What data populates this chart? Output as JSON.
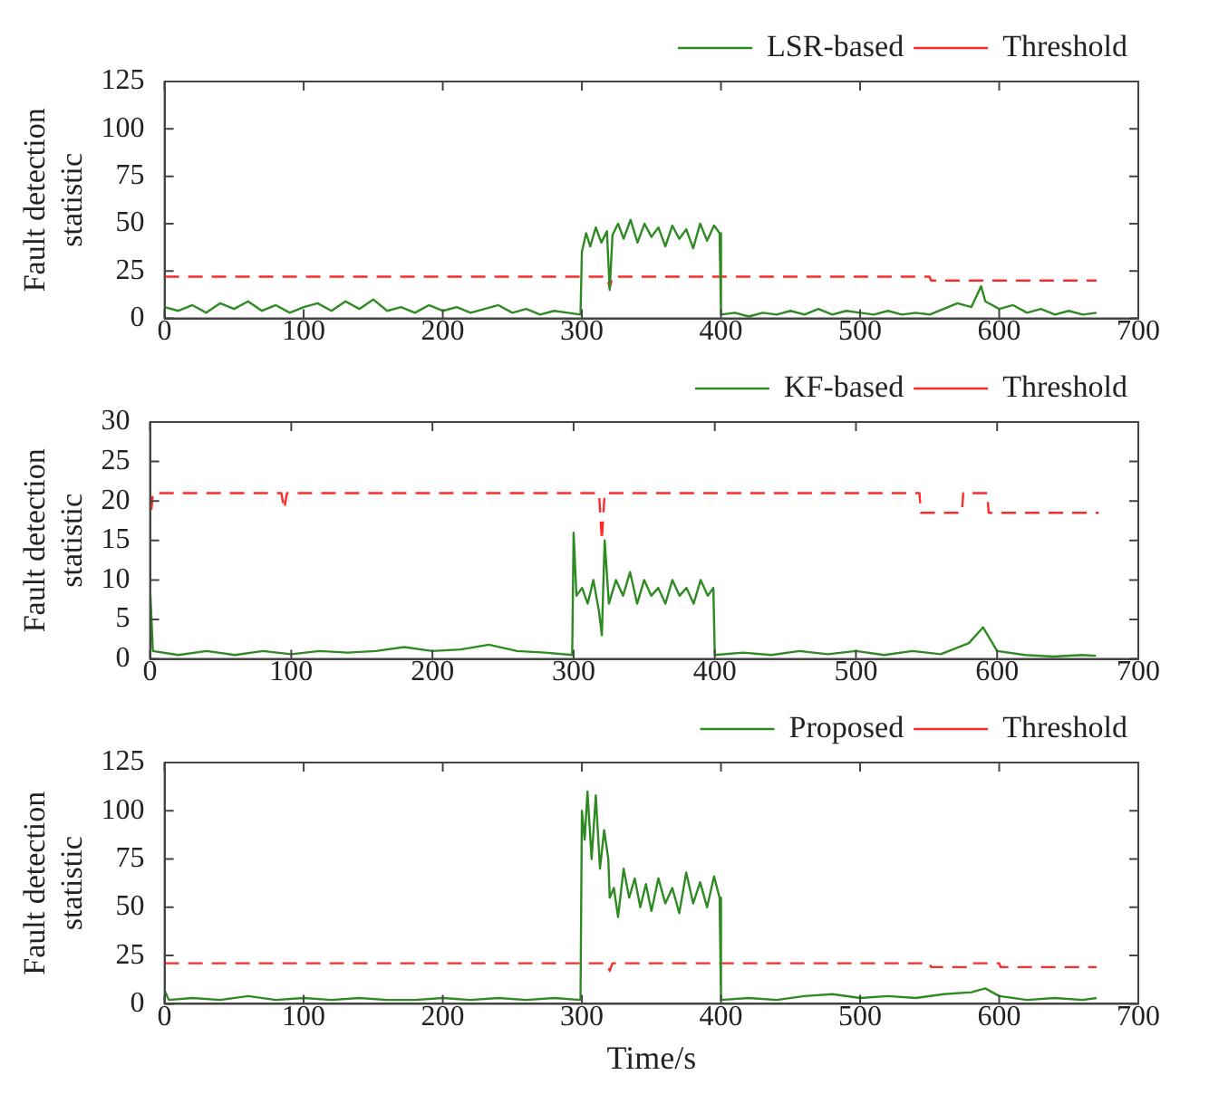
{
  "chart_data": [
    {
      "type": "line",
      "ylabel": "Fault detection statistic",
      "xlim": [
        0,
        700
      ],
      "xticks": [
        0,
        100,
        200,
        300,
        400,
        500,
        600,
        700
      ],
      "ylim": [
        0,
        125
      ],
      "yticks": [
        0,
        25,
        50,
        75,
        100,
        125
      ],
      "legend": "top right",
      "grid": false,
      "series": [
        {
          "name": "LSR-based",
          "color": "#2e8b22",
          "line_style": "solid",
          "x": [
            0,
            10,
            20,
            30,
            40,
            50,
            60,
            70,
            80,
            90,
            100,
            110,
            120,
            130,
            140,
            150,
            160,
            170,
            180,
            190,
            200,
            210,
            220,
            230,
            240,
            250,
            260,
            270,
            280,
            290,
            299,
            300,
            303,
            306,
            310,
            314,
            318,
            320,
            322,
            326,
            330,
            335,
            340,
            345,
            350,
            355,
            360,
            365,
            370,
            375,
            380,
            385,
            390,
            395,
            399,
            400,
            410,
            420,
            430,
            440,
            450,
            460,
            470,
            480,
            490,
            500,
            510,
            520,
            530,
            540,
            550,
            560,
            570,
            580,
            587,
            590,
            600,
            610,
            620,
            630,
            640,
            650,
            660,
            670
          ],
          "values": [
            6,
            4,
            7,
            3,
            8,
            5,
            9,
            4,
            7,
            3,
            6,
            8,
            4,
            9,
            5,
            10,
            4,
            6,
            3,
            7,
            4,
            6,
            3,
            5,
            7,
            3,
            5,
            2,
            4,
            3,
            2,
            35,
            45,
            38,
            48,
            40,
            46,
            15,
            44,
            50,
            42,
            52,
            40,
            50,
            43,
            48,
            38,
            49,
            42,
            47,
            37,
            50,
            41,
            49,
            45,
            2,
            3,
            1,
            3,
            2,
            4,
            2,
            5,
            2,
            4,
            3,
            2,
            4,
            2,
            3,
            2,
            5,
            8,
            6,
            17,
            9,
            5,
            7,
            3,
            5,
            2,
            4,
            2,
            3
          ]
        },
        {
          "name": "Threshold",
          "color": "#ff2a2a",
          "line_style": "dashed",
          "x": [
            0,
            318,
            320,
            322,
            550,
            551,
            670
          ],
          "values": [
            22,
            22,
            16,
            22,
            22,
            20,
            20
          ]
        }
      ]
    },
    {
      "type": "line",
      "ylabel": "Fault detection statistic",
      "xlim": [
        0,
        700
      ],
      "xticks": [
        0,
        100,
        200,
        300,
        400,
        500,
        600,
        700
      ],
      "ylim": [
        0,
        30
      ],
      "yticks": [
        0,
        5,
        10,
        15,
        20,
        25,
        30
      ],
      "legend": "top right",
      "grid": false,
      "series": [
        {
          "name": "KF-based",
          "color": "#2e8b22",
          "line_style": "solid",
          "x": [
            0,
            2,
            20,
            40,
            60,
            80,
            100,
            120,
            140,
            160,
            180,
            200,
            220,
            240,
            260,
            280,
            299,
            300,
            302,
            306,
            310,
            314,
            318,
            320,
            322,
            325,
            330,
            335,
            340,
            345,
            350,
            355,
            360,
            365,
            370,
            375,
            380,
            385,
            390,
            395,
            399,
            400,
            420,
            440,
            460,
            480,
            500,
            520,
            540,
            560,
            580,
            590,
            600,
            620,
            640,
            660,
            670
          ],
          "values": [
            9,
            1,
            0.5,
            1,
            0.5,
            1,
            0.6,
            1,
            0.8,
            1,
            1.5,
            1,
            1.2,
            1.8,
            1,
            0.8,
            0.5,
            16,
            8,
            9,
            7,
            10,
            6,
            3,
            15,
            7,
            10,
            8,
            11,
            7,
            10,
            8,
            9,
            7,
            10,
            8,
            9,
            7,
            10,
            8,
            9,
            0.5,
            0.8,
            0.5,
            1,
            0.6,
            1,
            0.5,
            1,
            0.6,
            2,
            4,
            1,
            0.5,
            0.3,
            0.5,
            0.4
          ]
        },
        {
          "name": "Threshold",
          "color": "#ff2a2a",
          "line_style": "dashed",
          "x": [
            0,
            1,
            2,
            93,
            95,
            97,
            318,
            320,
            322,
            545,
            546,
            575,
            576,
            593,
            594,
            672
          ],
          "values": [
            19,
            19,
            21,
            21,
            19,
            21,
            21,
            15,
            21,
            21,
            18.5,
            18.5,
            21,
            21,
            18.5,
            18.5
          ]
        }
      ]
    },
    {
      "type": "line",
      "ylabel": "Fault detection statistic",
      "xlabel": "Time/s",
      "xlim": [
        0,
        700
      ],
      "xticks": [
        0,
        100,
        200,
        300,
        400,
        500,
        600,
        700
      ],
      "ylim": [
        0,
        125
      ],
      "yticks": [
        0,
        25,
        50,
        75,
        100,
        125
      ],
      "legend": "top right",
      "grid": false,
      "series": [
        {
          "name": "Proposed",
          "color": "#2e8b22",
          "line_style": "solid",
          "x": [
            0,
            3,
            20,
            40,
            60,
            80,
            100,
            120,
            140,
            160,
            180,
            200,
            220,
            240,
            260,
            280,
            299,
            300,
            302,
            304,
            307,
            310,
            313,
            316,
            319,
            320,
            323,
            326,
            330,
            334,
            338,
            342,
            346,
            350,
            355,
            360,
            365,
            370,
            375,
            380,
            385,
            390,
            395,
            399,
            400,
            420,
            440,
            460,
            480,
            500,
            520,
            540,
            560,
            580,
            590,
            600,
            620,
            640,
            660,
            670
          ],
          "values": [
            7,
            2,
            3,
            2,
            4,
            2,
            3,
            2,
            3,
            2,
            2,
            3,
            2,
            3,
            2,
            3,
            2,
            100,
            85,
            110,
            75,
            108,
            70,
            90,
            75,
            55,
            60,
            45,
            70,
            55,
            65,
            50,
            62,
            48,
            65,
            52,
            60,
            47,
            68,
            52,
            63,
            50,
            66,
            55,
            2,
            3,
            2,
            4,
            5,
            3,
            4,
            3,
            5,
            6,
            8,
            4,
            2,
            3,
            2,
            3
          ]
        },
        {
          "name": "Threshold",
          "color": "#ff2a2a",
          "line_style": "dashed",
          "x": [
            0,
            318,
            320,
            322,
            550,
            551,
            580,
            581,
            600,
            601,
            670
          ],
          "values": [
            21,
            21,
            17,
            21,
            21,
            19,
            19,
            21,
            21,
            19,
            19
          ]
        }
      ]
    }
  ]
}
